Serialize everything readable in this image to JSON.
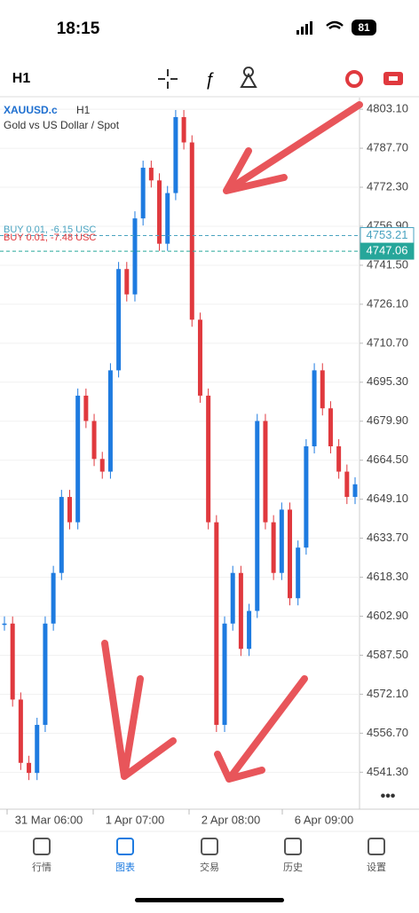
{
  "status_bar": {
    "time": "18:15",
    "battery": "81"
  },
  "toolbar": {
    "timeframe": "H1"
  },
  "chart": {
    "symbol": "XAUUSD.c",
    "timeframe": "H1",
    "description": "Gold vs US Dollar / Spot",
    "ylim": [
      4527.4,
      4807.7
    ],
    "yticks": [
      {
        "value": 4803.1,
        "label": "4803.10"
      },
      {
        "value": 4787.7,
        "label": "4787.70"
      },
      {
        "value": 4772.3,
        "label": "4772.30"
      },
      {
        "value": 4756.9,
        "label": "4756.90"
      },
      {
        "value": 4741.5,
        "label": "4741.50"
      },
      {
        "value": 4726.1,
        "label": "4726.10"
      },
      {
        "value": 4710.7,
        "label": "4710.70"
      },
      {
        "value": 4695.3,
        "label": "4695.30"
      },
      {
        "value": 4679.9,
        "label": "4679.90"
      },
      {
        "value": 4664.5,
        "label": "4664.50"
      },
      {
        "value": 4649.1,
        "label": "4649.10"
      },
      {
        "value": 4633.7,
        "label": "4633.70"
      },
      {
        "value": 4618.3,
        "label": "4618.30"
      },
      {
        "value": 4602.9,
        "label": "4602.90"
      },
      {
        "value": 4587.5,
        "label": "4587.50"
      },
      {
        "value": 4572.1,
        "label": "4572.10"
      },
      {
        "value": 4556.7,
        "label": "4556.70"
      },
      {
        "value": 4541.3,
        "label": "4541.30"
      }
    ],
    "xticks": [
      "31 Mar 06:00",
      "1 Apr 07:00",
      "2 Apr 08:00",
      "6 Apr 09:00"
    ],
    "closes": [
      4600,
      4570,
      4545,
      4541,
      4560,
      4600,
      4620,
      4650,
      4640,
      4690,
      4680,
      4665,
      4660,
      4700,
      4740,
      4730,
      4760,
      4780,
      4775,
      4750,
      4770,
      4800,
      4790,
      4720,
      4690,
      4640,
      4560,
      4600,
      4620,
      4590,
      4605,
      4680,
      4640,
      4620,
      4645,
      4610,
      4630,
      4670,
      4700,
      4685,
      4670,
      4660,
      4650,
      4655
    ],
    "price_lines": [
      4753.21,
      4747.06
    ],
    "orders": [
      "BUY 0.01, -6.15 USC",
      "BUY 0.01, -7.48 USC"
    ]
  },
  "tabs": [
    "行情",
    "图表",
    "交易",
    "历史",
    "设置"
  ]
}
